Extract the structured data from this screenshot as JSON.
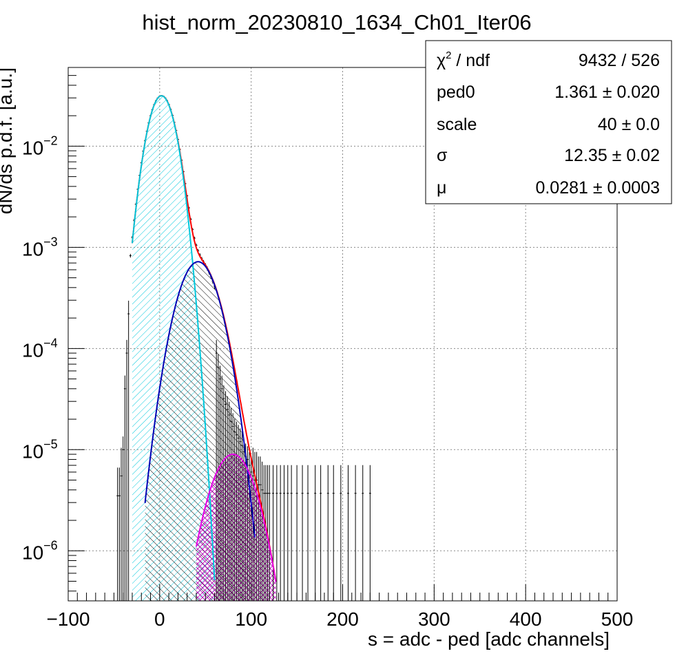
{
  "chart_data": {
    "type": "histogram",
    "title": "hist_norm_20230810_1634_Ch01_Iter06",
    "xlabel": "s = adc - ped [adc channels]",
    "ylabel": "dN/ds p.d.f. [a.u.]",
    "xlim": [
      -100,
      500
    ],
    "ylim": [
      3.2e-07,
      0.06
    ],
    "yscale": "log",
    "grid": true,
    "x_ticks": [
      {
        "value": -100,
        "label": "−100"
      },
      {
        "value": 0,
        "label": "0"
      },
      {
        "value": 100,
        "label": "100"
      },
      {
        "value": 200,
        "label": "200"
      },
      {
        "value": 300,
        "label": "300"
      },
      {
        "value": 400,
        "label": "400"
      },
      {
        "value": 500,
        "label": "500"
      }
    ],
    "y_ticks": [
      {
        "value": 0.01,
        "base": "10",
        "exp": "−2"
      },
      {
        "value": 0.001,
        "base": "10",
        "exp": "−3"
      },
      {
        "value": 0.0001,
        "base": "10",
        "exp": "−4"
      },
      {
        "value": 1e-05,
        "base": "10",
        "exp": "−5"
      },
      {
        "value": 1e-06,
        "base": "10",
        "exp": "−6"
      }
    ],
    "histogram": {
      "color": "#000000",
      "core": {
        "x_from": -32,
        "x_to": 60,
        "step": 2,
        "amp": 0.0315,
        "mu": 2,
        "sigma": 12.6
      },
      "shoulder": {
        "amp": 0.00072,
        "mu": 42,
        "sigma": 17
      },
      "entries": [
        [
          -46,
          3.5e-06
        ],
        [
          -44,
          3.5e-06
        ],
        [
          -42,
          5.5e-06
        ],
        [
          -40,
          1e-05
        ],
        [
          -38,
          4e-05
        ],
        [
          -36,
          9e-05
        ],
        [
          -34,
          0.00022
        ],
        [
          62,
          9e-05
        ],
        [
          64,
          6.5e-05
        ],
        [
          66,
          5e-05
        ],
        [
          68,
          4e-05
        ],
        [
          70,
          3.2e-05
        ],
        [
          72,
          2.8e-05
        ],
        [
          74,
          2.5e-05
        ],
        [
          76,
          2.2e-05
        ],
        [
          78,
          1.9e-05
        ],
        [
          80,
          1.7e-05
        ],
        [
          82,
          1.5e-05
        ],
        [
          84,
          1.4e-05
        ],
        [
          86,
          1.3e-05
        ],
        [
          88,
          1.2e-05
        ],
        [
          90,
          1.1e-05
        ],
        [
          92,
          9.5e-06
        ],
        [
          94,
          8.5e-06
        ],
        [
          96,
          8e-06
        ],
        [
          98,
          7e-06
        ],
        [
          100,
          6e-06
        ],
        [
          102,
          5.5e-06
        ],
        [
          104,
          5e-06
        ],
        [
          106,
          5e-06
        ],
        [
          108,
          4.5e-06
        ],
        [
          110,
          4.5e-06
        ],
        [
          112,
          4e-06
        ],
        [
          114,
          3.7e-06
        ],
        [
          116,
          3.7e-06
        ],
        [
          118,
          3.7e-06
        ],
        [
          120,
          3.7e-06
        ],
        [
          124,
          3.7e-06
        ],
        [
          128,
          3.7e-06
        ],
        [
          132,
          3.7e-06
        ],
        [
          136,
          3.7e-06
        ],
        [
          140,
          3.7e-06
        ],
        [
          144,
          3.7e-06
        ],
        [
          150,
          3.7e-06
        ],
        [
          156,
          3.7e-06
        ],
        [
          162,
          3.7e-06
        ],
        [
          170,
          3.7e-06
        ],
        [
          176,
          3.7e-06
        ],
        [
          184,
          3.7e-06
        ],
        [
          190,
          3.7e-06
        ],
        [
          198,
          3.7e-06
        ],
        [
          206,
          3.7e-06
        ],
        [
          214,
          3.7e-06
        ],
        [
          222,
          3.7e-06
        ],
        [
          230,
          3.7e-06
        ]
      ]
    },
    "components": [
      {
        "color": "#00c8dc",
        "hatch": "single",
        "amp": 0.0315,
        "mu": 2,
        "sigma": 12.35,
        "x_from": -30,
        "x_to": 60
      },
      {
        "color": "#0000b4",
        "hatch": "single",
        "amp": 0.00072,
        "mu": 42,
        "sigma": 17.5,
        "x_from": -16,
        "x_to": 104
      },
      {
        "color": "#e600e6",
        "hatch": "cross",
        "amp": 9e-06,
        "mu": 80,
        "sigma": 19.5,
        "x_from": 40,
        "x_to": 127
      }
    ],
    "total_fit": {
      "color": "#ff0000",
      "x_from": -30,
      "x_to": 127
    },
    "stats": {
      "title_prefix": "χ",
      "title_sup": "2",
      "title_rest": " / ndf",
      "title_value": "9432 / 526",
      "rows": [
        {
          "name": "ped0",
          "value": "1.361 ± 0.020"
        },
        {
          "name": "scale",
          "value": "40 ± 0.0"
        },
        {
          "name": "σ",
          "value": "12.35 ± 0.02"
        },
        {
          "name": "μ",
          "value": "0.0281 ± 0.0003"
        }
      ]
    }
  }
}
